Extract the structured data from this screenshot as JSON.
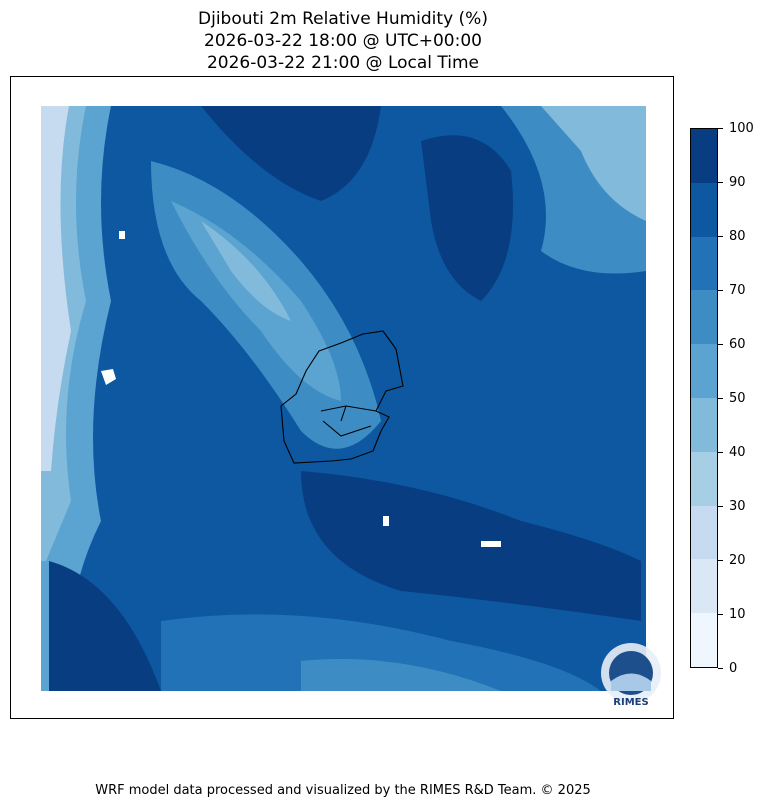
{
  "title": {
    "line1": "Djibouti 2m Relative Humidity (%)",
    "line2": "2026-03-22 18:00 @ UTC+00:00",
    "line3": "2026-03-22 21:00 @ Local Time"
  },
  "colorbar": {
    "levels": [
      0,
      10,
      20,
      30,
      40,
      50,
      60,
      70,
      80,
      90,
      100
    ],
    "tick_labels": [
      "0",
      "10",
      "20",
      "30",
      "40",
      "50",
      "60",
      "70",
      "80",
      "90",
      "100"
    ],
    "colors": [
      "#f0f6fd",
      "#dae8f5",
      "#c6dbef",
      "#a6cee4",
      "#82badb",
      "#5ba3d0",
      "#3d8dc4",
      "#2172b6",
      "#0d58a1",
      "#083e81"
    ]
  },
  "logo": {
    "text": "RIMES"
  },
  "footer": "WRF model data processed and visualized by the RIMES R&D Team. © 2025"
}
